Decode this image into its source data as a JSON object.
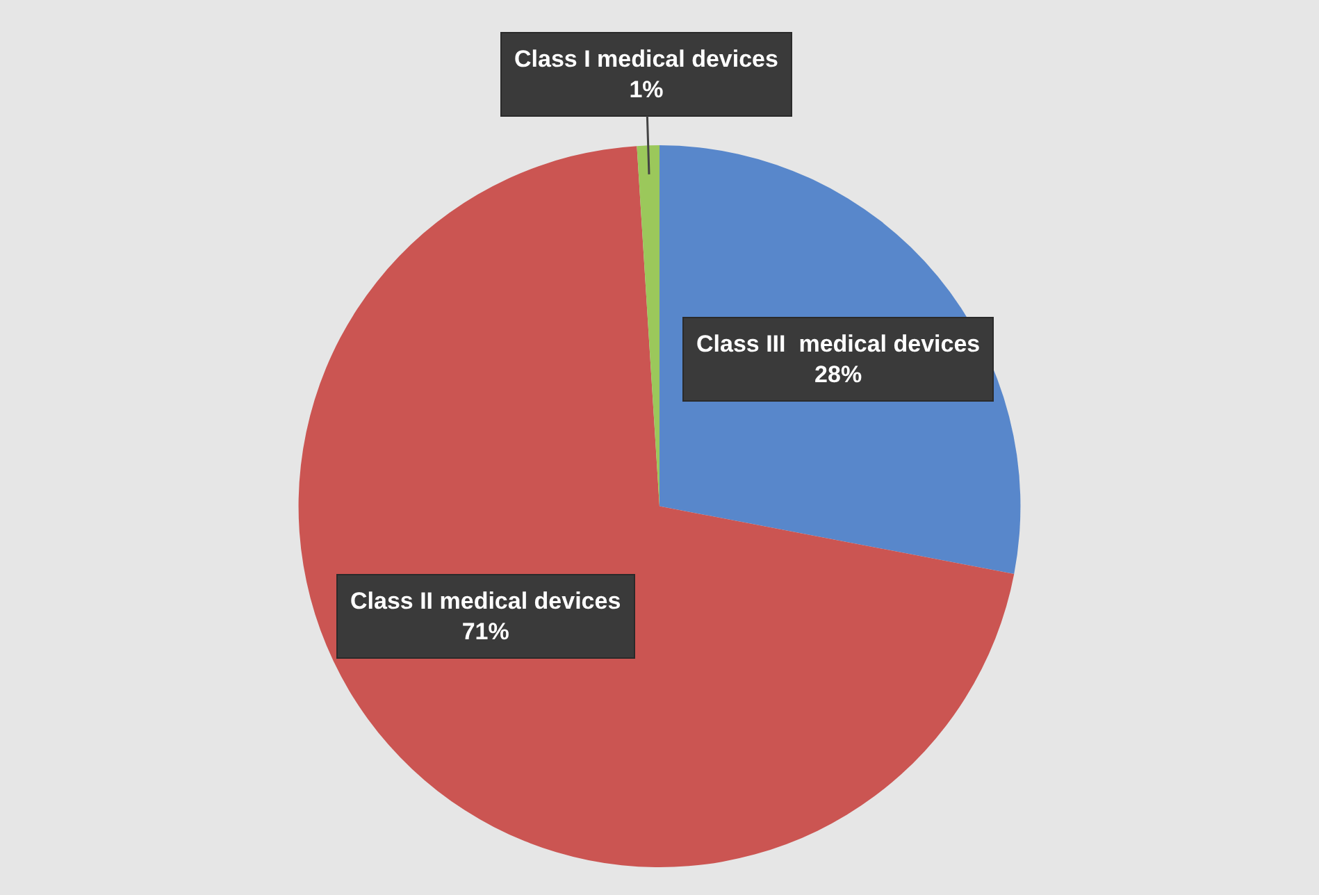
{
  "chart_data": {
    "type": "pie",
    "categories": [
      "Class III  medical devices",
      "Class II medical devices",
      "Class I medical devices"
    ],
    "values": [
      28,
      71,
      1
    ],
    "value_labels": [
      "28%",
      "71%",
      "1%"
    ],
    "colors": [
      "#5887cb",
      "#cb5552",
      "#9bc85b"
    ]
  }
}
